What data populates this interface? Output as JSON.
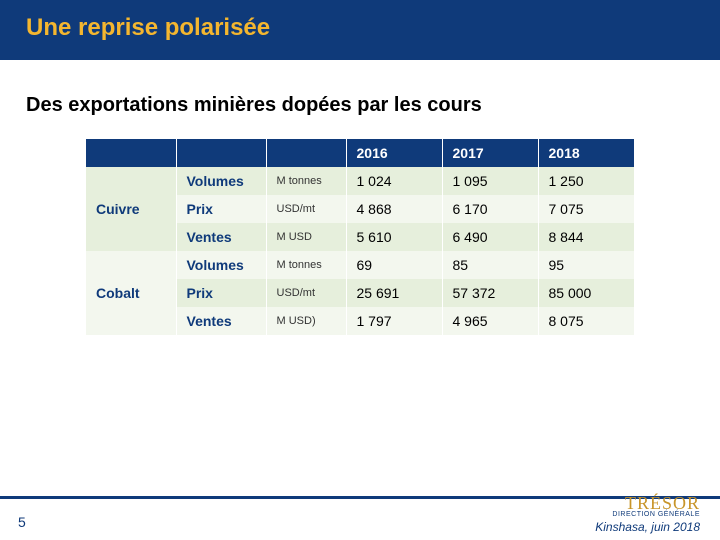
{
  "header": {
    "title": "Une reprise polarisée"
  },
  "subtitle": "Des exportations minières dopées par les cours",
  "table": {
    "years": [
      "2016",
      "2017",
      "2018"
    ],
    "materials": [
      {
        "name": "Cuivre",
        "rows": [
          {
            "metric": "Volumes",
            "unit": "M tonnes",
            "vals": [
              "1 024",
              "1 095",
              "1 250"
            ]
          },
          {
            "metric": "Prix",
            "unit": "USD/mt",
            "vals": [
              "4 868",
              "6 170",
              "7 075"
            ]
          },
          {
            "metric": "Ventes",
            "unit": "M USD",
            "vals": [
              "5 610",
              "6 490",
              "8 844"
            ]
          }
        ]
      },
      {
        "name": "Cobalt",
        "rows": [
          {
            "metric": "Volumes",
            "unit": "M tonnes",
            "vals": [
              "69",
              "85",
              "95"
            ]
          },
          {
            "metric": "Prix",
            "unit": "USD/mt",
            "vals": [
              "25 691",
              "57 372",
              "85 000"
            ]
          },
          {
            "metric": "Ventes",
            "unit": "M USD)",
            "vals": [
              "1 797",
              "4 965",
              "8 075"
            ]
          }
        ]
      }
    ]
  },
  "footer": {
    "page": "5",
    "brand": "TRÉSOR",
    "brand_sub": "DIRECTION GÉNÉRALE",
    "text": "Kinshasa, juin 2018"
  },
  "colors": {
    "header_bg": "#0f3a7a",
    "title": "#f4b62f",
    "row_a": "#e6efdc",
    "row_b": "#f3f7ee",
    "brand": "#c8952a"
  }
}
